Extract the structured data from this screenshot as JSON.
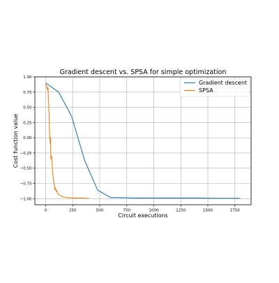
{
  "chart_data": {
    "type": "line",
    "title": "Gradient descent vs. SPSA for simple optimization",
    "xlabel": "Circuit executions",
    "ylabel": "Cost function value",
    "xlim": [
      -100,
      1900
    ],
    "ylim": [
      -1.1,
      1.0
    ],
    "xticks": [
      0,
      250,
      500,
      750,
      1000,
      1250,
      1500,
      1750
    ],
    "yticks": [
      -1.0,
      -0.75,
      -0.5,
      -0.25,
      0.0,
      0.25,
      0.5,
      0.75,
      1.0
    ],
    "xtick_labels": [
      "0",
      "250",
      "500",
      "750",
      "1000",
      "1250",
      "1500",
      "1750"
    ],
    "ytick_labels": [
      "−1.00",
      "−0.75",
      "−0.50",
      "−0.25",
      "0.00",
      "0.25",
      "0.50",
      "0.75",
      "1.00"
    ],
    "grid": true,
    "legend_position": "top-right",
    "series": [
      {
        "name": "Gradient descent",
        "color": "#1f77b4",
        "x": [
          0,
          120,
          240,
          360,
          480,
          600,
          720,
          840,
          960,
          1080,
          1200,
          1320,
          1440,
          1560,
          1680,
          1800
        ],
        "y": [
          0.9,
          0.75,
          0.35,
          -0.37,
          -0.86,
          -0.98,
          -0.985,
          -0.99,
          -0.99,
          -0.99,
          -0.99,
          -0.99,
          -0.99,
          -0.995,
          -0.995,
          -0.995
        ]
      },
      {
        "name": "SPSA",
        "color": "#ff7f0e",
        "x": [
          0,
          6,
          12,
          18,
          21,
          24,
          30,
          36,
          42,
          45,
          48,
          54,
          60,
          66,
          72,
          78,
          84,
          90,
          96,
          102,
          108,
          114,
          120,
          135,
          150,
          165,
          180,
          200,
          220,
          240,
          260,
          280,
          300,
          320,
          340,
          360,
          380,
          400
        ],
        "y": [
          0.88,
          0.85,
          0.82,
          0.78,
          0.83,
          0.72,
          0.45,
          0.1,
          -0.1,
          0.0,
          -0.35,
          -0.3,
          -0.4,
          -0.6,
          -0.7,
          -0.75,
          -0.85,
          -0.82,
          -0.88,
          -0.86,
          -0.9,
          -0.92,
          -0.93,
          -0.95,
          -0.96,
          -0.97,
          -0.975,
          -0.98,
          -0.985,
          -0.985,
          -0.99,
          -0.99,
          -0.99,
          -0.99,
          -0.99,
          -0.995,
          -0.995,
          -0.995
        ]
      }
    ]
  }
}
